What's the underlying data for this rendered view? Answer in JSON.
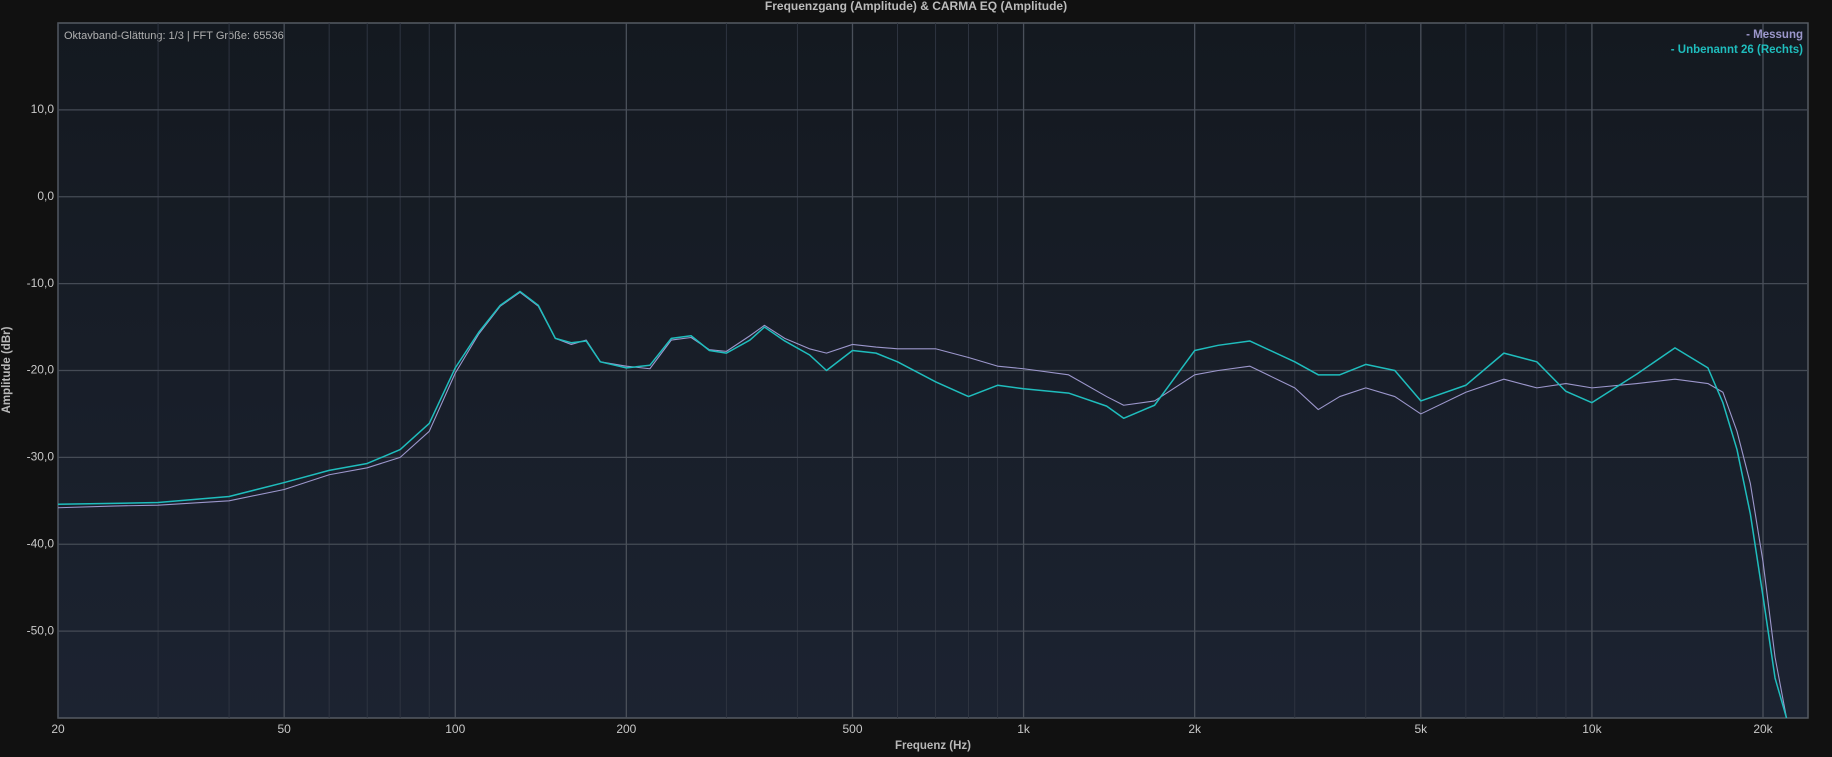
{
  "chart_data": {
    "type": "line",
    "title": "Frequenzgang (Amplitude) & CARMA EQ (Amplitude)",
    "annotation": "Oktavband-Glättung: 1/3 | FFT Größe: 65536",
    "x_label": "Frequenz (Hz)",
    "y_label": "Amplitude (dBr)",
    "x_log": true,
    "grid": true,
    "legend": "top-right",
    "xlim": [
      20,
      24000
    ],
    "ylim": [
      -60,
      20
    ],
    "xticks": [
      20,
      50,
      100,
      200,
      500,
      {
        "value": 1000,
        "label": "1k"
      },
      {
        "value": 2000,
        "label": "2k"
      },
      {
        "value": 5000,
        "label": "5k"
      },
      {
        "value": 10000,
        "label": "10k"
      },
      {
        "value": 20000,
        "label": "20k"
      }
    ],
    "xticks_minor": [
      30,
      40,
      60,
      70,
      80,
      90,
      300,
      400,
      600,
      700,
      800,
      900,
      3000,
      4000,
      6000,
      7000,
      8000,
      9000
    ],
    "yticks": [
      {
        "value": -50,
        "label": "-50,0"
      },
      {
        "value": -40,
        "label": "-40,0"
      },
      {
        "value": -30,
        "label": "-30,0"
      },
      {
        "value": -20,
        "label": "-20,0"
      },
      {
        "value": -10,
        "label": "-10,0"
      },
      {
        "value": 0,
        "label": "0,0"
      },
      {
        "value": 10,
        "label": "10,0"
      }
    ],
    "x": [
      20,
      25,
      30,
      40,
      50,
      60,
      70,
      80,
      90,
      100,
      110,
      120,
      130,
      140,
      150,
      160,
      170,
      180,
      200,
      220,
      240,
      260,
      280,
      300,
      330,
      350,
      380,
      420,
      450,
      500,
      550,
      600,
      700,
      800,
      900,
      1000,
      1200,
      1400,
      1500,
      1700,
      2000,
      2200,
      2500,
      3000,
      3300,
      3600,
      4000,
      4500,
      5000,
      6000,
      7000,
      8000,
      9000,
      10000,
      12000,
      14000,
      16000,
      17000,
      18000,
      19000,
      20000,
      21000,
      22000
    ],
    "series": [
      {
        "name": "- Messung",
        "color": "#9c97cc",
        "values": [
          -35.8,
          -35.6,
          -35.5,
          -35,
          -33.7,
          -32,
          -31.2,
          -30,
          -27,
          -20.3,
          -15.8,
          -12.6,
          -11,
          -12.6,
          -16.3,
          -17,
          -16.5,
          -19,
          -19.5,
          -19.8,
          -16.5,
          -16.2,
          -17.6,
          -17.8,
          -16,
          -14.8,
          -16.3,
          -17.5,
          -18,
          -17,
          -17.3,
          -17.5,
          -17.5,
          -18.5,
          -19.5,
          -19.8,
          -20.5,
          -23,
          -24,
          -23.5,
          -20.5,
          -20,
          -19.5,
          -22,
          -24.5,
          -23,
          -22,
          -23,
          -25,
          -22.5,
          -21,
          -22,
          -21.5,
          -22,
          -21.5,
          -21,
          -21.5,
          -22.5,
          -27,
          -33,
          -42,
          -53,
          -60
        ]
      },
      {
        "name": "- Unbenannt 26 (Rechts)",
        "color": "#1fbdbd",
        "values": [
          -35.4,
          -35.3,
          -35.2,
          -34.5,
          -32.9,
          -31.5,
          -30.7,
          -29.1,
          -26.1,
          -19.7,
          -15.6,
          -12.5,
          -10.9,
          -12.5,
          -16.3,
          -16.8,
          -16.6,
          -19,
          -19.7,
          -19.4,
          -16.3,
          -16,
          -17.7,
          -18,
          -16.5,
          -15,
          -16.6,
          -18.2,
          -20,
          -17.7,
          -18,
          -19,
          -21.3,
          -23,
          -21.7,
          -22.1,
          -22.6,
          -24.1,
          -25.5,
          -24,
          -17.7,
          -17.1,
          -16.6,
          -19,
          -20.5,
          -20.5,
          -19.3,
          -20,
          -23.5,
          -21.7,
          -18,
          -19,
          -22.4,
          -23.7,
          -20.4,
          -17.4,
          -19.7,
          -23.7,
          -29.1,
          -36.5,
          -46,
          -55.4,
          -60
        ]
      }
    ]
  }
}
